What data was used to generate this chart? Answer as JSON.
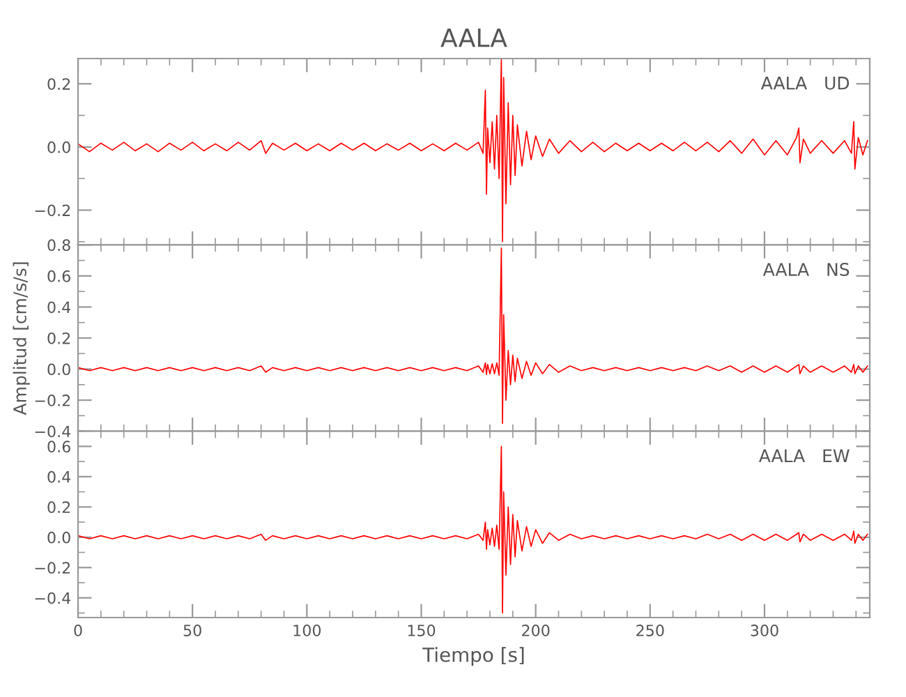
{
  "chart_data": [
    {
      "type": "line",
      "title": "AALA",
      "annotations": [
        "AALA   UD"
      ],
      "tick_labels": "y",
      "grid": false,
      "legend": false,
      "marker": "none",
      "line_style": "solid",
      "xlim": [
        0,
        346
      ],
      "xticks": [
        0,
        50,
        100,
        150,
        200,
        250,
        300
      ],
      "ylim": [
        -0.31,
        0.28
      ],
      "yticks": [
        {
          "value": -0.2,
          "label": "−0.2"
        },
        {
          "value": 0.0,
          "label": "0.0"
        },
        {
          "value": 0.2,
          "label": "0.2"
        }
      ],
      "x": [
        0,
        5,
        10,
        15,
        20,
        25,
        30,
        35,
        40,
        45,
        50,
        55,
        60,
        65,
        70,
        75,
        80,
        82,
        85,
        90,
        95,
        100,
        105,
        110,
        115,
        120,
        125,
        130,
        135,
        140,
        145,
        150,
        155,
        160,
        165,
        170,
        175,
        177,
        178,
        178.5,
        179,
        180,
        181,
        182,
        183,
        184,
        185,
        185.5,
        186,
        187,
        188,
        189,
        190,
        191,
        192,
        194,
        196,
        198,
        200,
        203,
        206,
        210,
        215,
        220,
        225,
        230,
        235,
        240,
        245,
        250,
        255,
        260,
        265,
        270,
        275,
        280,
        285,
        290,
        295,
        300,
        305,
        310,
        314,
        315,
        315.5,
        317,
        320,
        325,
        330,
        335,
        338,
        339,
        339.5,
        341,
        343,
        345
      ],
      "series": [
        {
          "color": "#ff0000",
          "values": [
            0.01,
            -0.015,
            0.012,
            -0.01,
            0.015,
            -0.012,
            0.01,
            -0.015,
            0.012,
            -0.01,
            0.015,
            -0.012,
            0.01,
            -0.012,
            0.015,
            -0.01,
            0.02,
            -0.02,
            0.012,
            -0.01,
            0.012,
            -0.012,
            0.01,
            -0.012,
            0.012,
            -0.01,
            0.012,
            -0.012,
            0.01,
            -0.01,
            0.012,
            -0.012,
            0.01,
            -0.012,
            0.012,
            -0.01,
            0.015,
            -0.02,
            0.18,
            -0.15,
            0.06,
            -0.05,
            0.08,
            -0.07,
            0.1,
            -0.1,
            0.28,
            -0.3,
            0.22,
            -0.18,
            0.14,
            -0.12,
            0.1,
            -0.09,
            0.07,
            -0.06,
            0.05,
            -0.04,
            0.035,
            -0.03,
            0.025,
            -0.02,
            0.02,
            -0.015,
            0.015,
            -0.015,
            0.012,
            -0.012,
            0.012,
            -0.012,
            0.012,
            -0.012,
            0.015,
            -0.012,
            0.015,
            -0.015,
            0.02,
            -0.02,
            0.025,
            -0.025,
            0.02,
            -0.025,
            0.03,
            0.06,
            -0.05,
            0.025,
            -0.02,
            0.02,
            -0.02,
            0.02,
            -0.02,
            0.08,
            -0.07,
            0.03,
            -0.025,
            0.02
          ]
        }
      ]
    },
    {
      "type": "line",
      "ylabel": "Amplitud [cm/s/s]",
      "annotations": [
        "AALA   NS"
      ],
      "tick_labels": "y",
      "grid": false,
      "legend": false,
      "marker": "none",
      "line_style": "solid",
      "xlim": [
        0,
        346
      ],
      "xticks": [
        0,
        50,
        100,
        150,
        200,
        250,
        300
      ],
      "ylim": [
        -0.4,
        0.8
      ],
      "yticks": [
        {
          "value": -0.4,
          "label": "−0.4"
        },
        {
          "value": -0.2,
          "label": "−0.2"
        },
        {
          "value": 0.0,
          "label": "0.0"
        },
        {
          "value": 0.2,
          "label": "0.2"
        },
        {
          "value": 0.4,
          "label": "0.4"
        },
        {
          "value": 0.6,
          "label": "0.6"
        },
        {
          "value": 0.8,
          "label": "0.8"
        }
      ],
      "x": [
        0,
        5,
        10,
        15,
        20,
        25,
        30,
        35,
        40,
        45,
        50,
        55,
        60,
        65,
        70,
        75,
        80,
        82,
        85,
        90,
        95,
        100,
        105,
        110,
        115,
        120,
        125,
        130,
        135,
        140,
        145,
        150,
        155,
        160,
        165,
        170,
        175,
        177,
        178,
        178.5,
        179,
        180,
        181,
        182,
        183,
        184,
        185,
        185.5,
        186,
        187,
        188,
        189,
        190,
        191,
        192,
        194,
        196,
        198,
        200,
        203,
        206,
        210,
        215,
        220,
        225,
        230,
        235,
        240,
        245,
        250,
        255,
        260,
        265,
        270,
        275,
        280,
        285,
        290,
        295,
        300,
        305,
        310,
        314,
        315,
        315.5,
        317,
        320,
        325,
        330,
        335,
        338,
        339,
        339.5,
        341,
        343,
        345
      ],
      "series": [
        {
          "color": "#ff0000",
          "values": [
            0.01,
            -0.01,
            0.01,
            -0.01,
            0.01,
            -0.01,
            0.01,
            -0.01,
            0.01,
            -0.01,
            0.01,
            -0.01,
            0.01,
            -0.01,
            0.01,
            -0.01,
            0.02,
            -0.02,
            0.01,
            -0.01,
            0.01,
            -0.01,
            0.01,
            -0.01,
            0.01,
            -0.01,
            0.01,
            -0.01,
            0.01,
            -0.01,
            0.01,
            -0.01,
            0.01,
            -0.01,
            0.01,
            -0.01,
            0.02,
            -0.02,
            0.04,
            -0.035,
            0.03,
            -0.03,
            0.035,
            -0.03,
            0.04,
            -0.04,
            0.78,
            -0.35,
            0.35,
            -0.2,
            0.12,
            -0.1,
            0.09,
            -0.08,
            0.07,
            -0.06,
            0.05,
            -0.04,
            0.04,
            -0.03,
            0.03,
            -0.02,
            0.02,
            -0.01,
            0.01,
            -0.01,
            0.01,
            -0.01,
            0.01,
            -0.01,
            0.01,
            -0.01,
            0.01,
            -0.01,
            0.02,
            -0.01,
            0.02,
            -0.02,
            0.02,
            -0.02,
            0.02,
            -0.02,
            0.02,
            0.03,
            -0.03,
            0.02,
            -0.02,
            0.02,
            -0.02,
            0.02,
            -0.02,
            0.03,
            -0.03,
            0.02,
            -0.02,
            0.02
          ]
        }
      ]
    },
    {
      "type": "line",
      "xlabel": "Tiempo [s]",
      "annotations": [
        "AALA   EW"
      ],
      "grid": false,
      "legend": false,
      "marker": "none",
      "line_style": "solid",
      "xlim": [
        0,
        346
      ],
      "xticks": [
        0,
        50,
        100,
        150,
        200,
        250,
        300
      ],
      "ylim": [
        -0.53,
        0.7
      ],
      "yticks": [
        {
          "value": -0.4,
          "label": "−0.4"
        },
        {
          "value": -0.2,
          "label": "−0.2"
        },
        {
          "value": 0.0,
          "label": "0.0"
        },
        {
          "value": 0.2,
          "label": "0.2"
        },
        {
          "value": 0.4,
          "label": "0.4"
        },
        {
          "value": 0.6,
          "label": "0.6"
        }
      ],
      "x": [
        0,
        5,
        10,
        15,
        20,
        25,
        30,
        35,
        40,
        45,
        50,
        55,
        60,
        65,
        70,
        75,
        80,
        82,
        85,
        90,
        95,
        100,
        105,
        110,
        115,
        120,
        125,
        130,
        135,
        140,
        145,
        150,
        155,
        160,
        165,
        170,
        175,
        177,
        178,
        178.5,
        179,
        180,
        181,
        182,
        183,
        184,
        185,
        185.5,
        186,
        187,
        188,
        189,
        190,
        191,
        192,
        194,
        196,
        198,
        200,
        203,
        206,
        210,
        215,
        220,
        225,
        230,
        235,
        240,
        245,
        250,
        255,
        260,
        265,
        270,
        275,
        280,
        285,
        290,
        295,
        300,
        305,
        310,
        314,
        315,
        315.5,
        317,
        320,
        325,
        330,
        335,
        338,
        339,
        339.5,
        341,
        343,
        345
      ],
      "series": [
        {
          "color": "#ff0000",
          "values": [
            0.01,
            -0.01,
            0.01,
            -0.01,
            0.01,
            -0.01,
            0.01,
            -0.01,
            0.01,
            -0.01,
            0.01,
            -0.01,
            0.01,
            -0.01,
            0.01,
            -0.01,
            0.02,
            -0.02,
            0.01,
            -0.01,
            0.01,
            -0.01,
            0.01,
            -0.01,
            0.01,
            -0.01,
            0.01,
            -0.01,
            0.01,
            -0.01,
            0.01,
            -0.01,
            0.01,
            -0.01,
            0.01,
            -0.01,
            0.02,
            -0.02,
            0.1,
            -0.08,
            0.05,
            -0.05,
            0.06,
            -0.06,
            0.08,
            -0.08,
            0.6,
            -0.5,
            0.3,
            -0.25,
            0.2,
            -0.18,
            0.15,
            -0.13,
            0.11,
            -0.09,
            0.07,
            -0.06,
            0.05,
            -0.04,
            0.03,
            -0.02,
            0.02,
            -0.01,
            0.01,
            -0.01,
            0.01,
            -0.01,
            0.01,
            -0.01,
            0.01,
            -0.01,
            0.01,
            -0.01,
            0.02,
            -0.01,
            0.02,
            -0.02,
            0.02,
            -0.02,
            0.02,
            -0.02,
            0.02,
            0.03,
            -0.03,
            0.02,
            -0.02,
            0.02,
            -0.02,
            0.02,
            -0.02,
            0.04,
            -0.04,
            0.02,
            -0.02,
            0.02
          ]
        }
      ]
    }
  ]
}
